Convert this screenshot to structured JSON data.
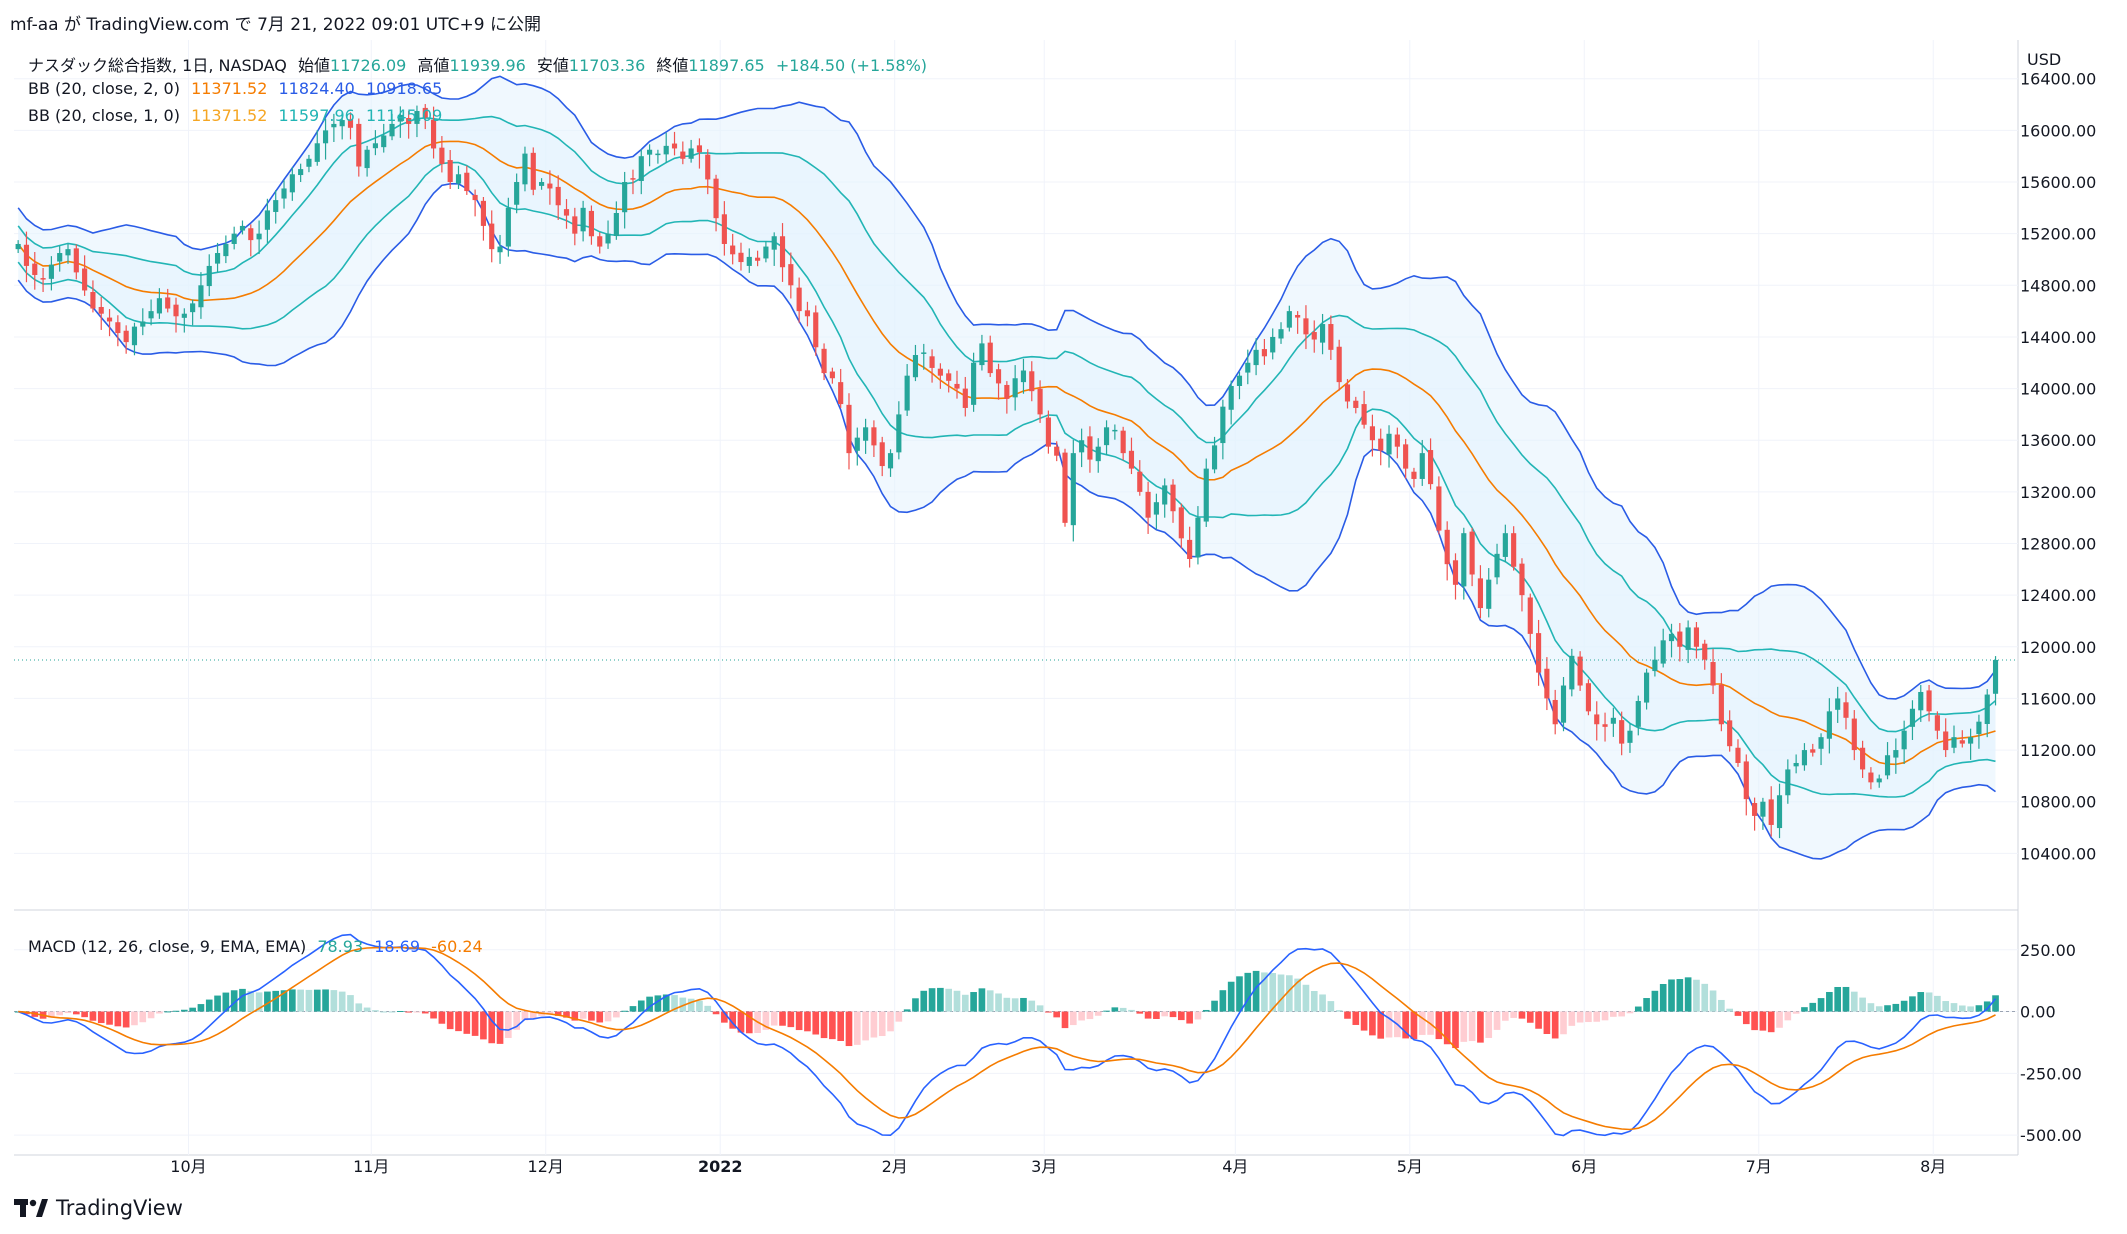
{
  "header": {
    "text": "mf-aa が TradingView.com で 7月 21, 2022 09:01 UTC+9 に公開"
  },
  "footer": {
    "brand": "TradingView",
    "logo_icon": "tradingview-logo-icon"
  },
  "legend": {
    "main": {
      "name": "ナスダック総合指数, 1日, NASDAQ",
      "open_label": "始値",
      "open": "11726.09",
      "high_label": "高値",
      "high": "11939.96",
      "low_label": "安値",
      "low": "11703.36",
      "close_label": "終値",
      "close": "11897.65",
      "change": "+184.50 (+1.58%)"
    },
    "bb2": {
      "label": "BB (20, close, 2, 0)",
      "basis": "11371.52",
      "upper": "11824.40",
      "lower": "10918.65"
    },
    "bb1": {
      "label": "BB (20, close, 1, 0)",
      "basis": "11371.52",
      "upper": "11597.96",
      "lower": "11145.09"
    },
    "macd": {
      "label": "MACD (12, 26, close, 9, EMA, EMA)",
      "hist": "78.93",
      "macd": "18.69",
      "signal": "-60.24"
    }
  },
  "colors": {
    "up": "#26a69a",
    "down": "#ef5350",
    "basis": "#f57c00",
    "bb2": "#2a5ce6",
    "bb1": "#22b5b5",
    "fill": "#e3f2fd",
    "macd": "#2962ff",
    "signal": "#f57c00",
    "hist_up_strong": "#26a69a",
    "hist_up_weak": "#b2dfdb",
    "hist_dn_strong": "#ff5252",
    "hist_dn_weak": "#ffcdd2",
    "grid": "#f0f3fa",
    "text": "#131722"
  },
  "chart_data": {
    "type": "candlestick",
    "currency": "USD",
    "y_ticks": [
      "16400.00",
      "16000.00",
      "15600.00",
      "15200.00",
      "14800.00",
      "14400.00",
      "14000.00",
      "13600.00",
      "13200.00",
      "12800.00",
      "12400.00",
      "12000.00",
      "11600.00",
      "11200.00",
      "10800.00",
      "10400.00"
    ],
    "y_tick_values": [
      16400,
      16000,
      15600,
      15200,
      14800,
      14400,
      14000,
      13600,
      13200,
      12800,
      12400,
      12000,
      11600,
      11200,
      10800,
      10400
    ],
    "ylim": [
      10000,
      16700
    ],
    "x_labels": [
      "10月",
      "11月",
      "12月",
      "2022",
      "2月",
      "3月",
      "4月",
      "5月",
      "6月",
      "7月",
      "8月"
    ],
    "x_label_days": [
      21,
      43,
      64,
      85,
      106,
      124,
      147,
      168,
      189,
      210,
      231
    ],
    "total_days": 240,
    "last_close": 11897.65,
    "close_series": [
      15120,
      14950,
      14880,
      14850,
      14960,
      15050,
      15080,
      14900,
      14760,
      14620,
      14580,
      14520,
      14430,
      14360,
      14480,
      14520,
      14600,
      14700,
      14620,
      14560,
      14580,
      14660,
      14800,
      14950,
      15050,
      15120,
      15200,
      15260,
      15150,
      15200,
      15380,
      15460,
      15550,
      15660,
      15700,
      15780,
      15900,
      16000,
      16050,
      16080,
      16020,
      15720,
      15850,
      15900,
      15960,
      16050,
      16120,
      16050,
      16150,
      16100,
      15860,
      15740,
      15600,
      15660,
      15530,
      15460,
      15260,
      15080,
      15100,
      15400,
      15600,
      15820,
      15540,
      15600,
      15550,
      15420,
      15340,
      15200,
      15400,
      15180,
      15100,
      15200,
      15360,
      15600,
      15620,
      15800,
      15850,
      15820,
      15880,
      15860,
      15780,
      15860,
      15830,
      15620,
      15320,
      15120,
      15040,
      14980,
      15020,
      14990,
      15100,
      15180,
      14940,
      14800,
      14600,
      14560,
      14320,
      14120,
      14080,
      13880,
      13500,
      13620,
      13700,
      13560,
      13400,
      13500,
      13800,
      14100,
      14260,
      14280,
      14160,
      14100,
      14060,
      14000,
      13850,
      14200,
      14350,
      14120,
      14040,
      13920,
      14080,
      14140,
      13980,
      13800,
      13550,
      13480,
      12960,
      13500,
      13600,
      13450,
      13550,
      13700,
      13680,
      13500,
      13380,
      13200,
      13000,
      13120,
      13250,
      13050,
      12840,
      12680,
      13000,
      13380,
      13560,
      13860,
      14020,
      14100,
      14200,
      14300,
      14250,
      14400,
      14460,
      14600,
      14550,
      14420,
      14380,
      14500,
      14300,
      14050,
      13900,
      13850,
      13720,
      13600,
      13520,
      13650,
      13550,
      13380,
      13300,
      13500,
      13260,
      12900,
      12640,
      12480,
      12880,
      12560,
      12300,
      12520,
      12720,
      12880,
      12620,
      12400,
      12100,
      11800,
      11600,
      11400,
      11700,
      11930,
      11700,
      11500,
      11400,
      11380,
      11450,
      11250,
      11350,
      11580,
      11800,
      11900,
      12050,
      12100,
      12000,
      12150,
      12000,
      11900,
      11700,
      11400,
      11230,
      11100,
      10820,
      10690,
      10800,
      10620,
      10850,
      11050,
      11100,
      11200,
      11180,
      11300,
      11500,
      11600,
      11450,
      11200,
      11050,
      10950,
      10980,
      11160,
      11200,
      11350,
      11520,
      11650,
      11500,
      11350,
      11200,
      11300,
      11250,
      11300,
      11420,
      11630,
      11898
    ],
    "macd": {
      "y_ticks": [
        "250.00",
        "0.00",
        "-250.00",
        "-500.00"
      ],
      "y_tick_values": [
        250,
        0,
        -250,
        -500
      ],
      "ylim": [
        -540,
        330
      ]
    }
  }
}
